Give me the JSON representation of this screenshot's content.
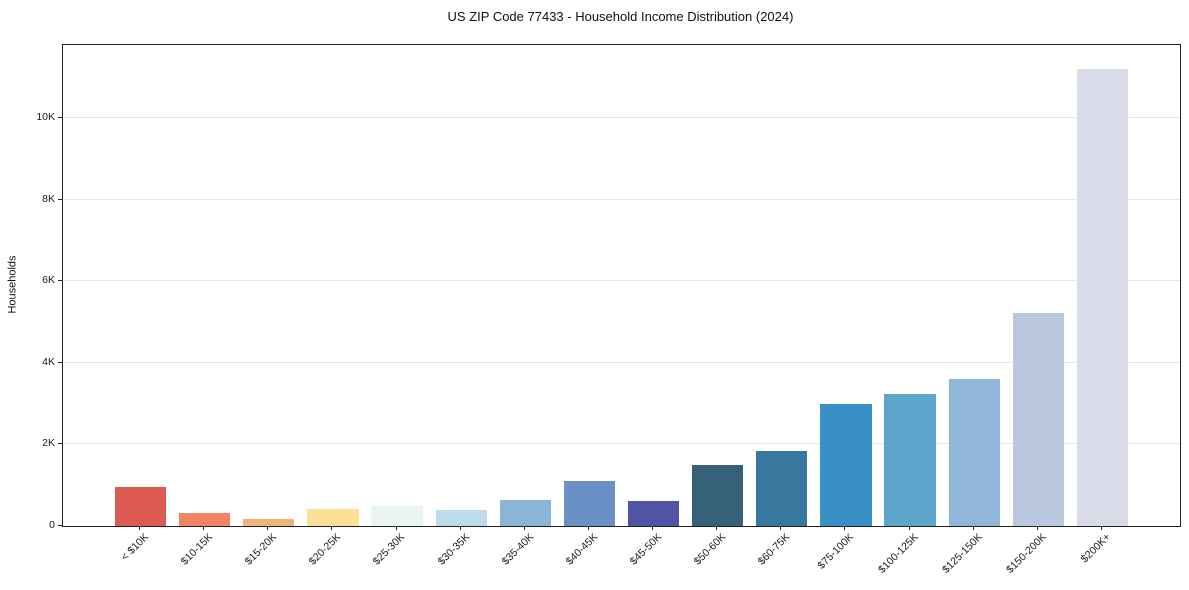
{
  "page": {
    "background": "#ffffff"
  },
  "chart_data": {
    "type": "bar",
    "title": "US ZIP Code 77433 - Household Income Distribution (2024)",
    "xlabel": "",
    "ylabel": "Households",
    "ylim": [
      0,
      11800
    ],
    "grid": true,
    "grid_color": "#e7e7e7",
    "axis_color": "#222222",
    "legend_position": "none",
    "yticks": [
      {
        "value": 0,
        "label": "0"
      },
      {
        "value": 2000,
        "label": "2K"
      },
      {
        "value": 4000,
        "label": "4K"
      },
      {
        "value": 6000,
        "label": "6K"
      },
      {
        "value": 8000,
        "label": "8K"
      },
      {
        "value": 10000,
        "label": "10K"
      }
    ],
    "categories": [
      "< $10K",
      "$10-15K",
      "$15-20K",
      "$20-25K",
      "$25-30K",
      "$30-35K",
      "$35-40K",
      "$40-45K",
      "$45-50K",
      "$50-60K",
      "$60-75K",
      "$75-100K",
      "$100-125K",
      "$125-150K",
      "$150-200K",
      "$200K+"
    ],
    "values": [
      950,
      320,
      160,
      420,
      480,
      400,
      640,
      1100,
      620,
      1500,
      1850,
      3000,
      3230,
      3600,
      5220,
      11200
    ],
    "bar_colors": [
      "#dc5a52",
      "#f08463",
      "#f4b179",
      "#fce096",
      "#ebf5f0",
      "#bcdcea",
      "#8ab5d6",
      "#6b90c5",
      "#5153a4",
      "#366178",
      "#38789e",
      "#3990c4",
      "#5da5ca",
      "#90b7da",
      "#b9c8df",
      "#d9dbe8"
    ]
  }
}
